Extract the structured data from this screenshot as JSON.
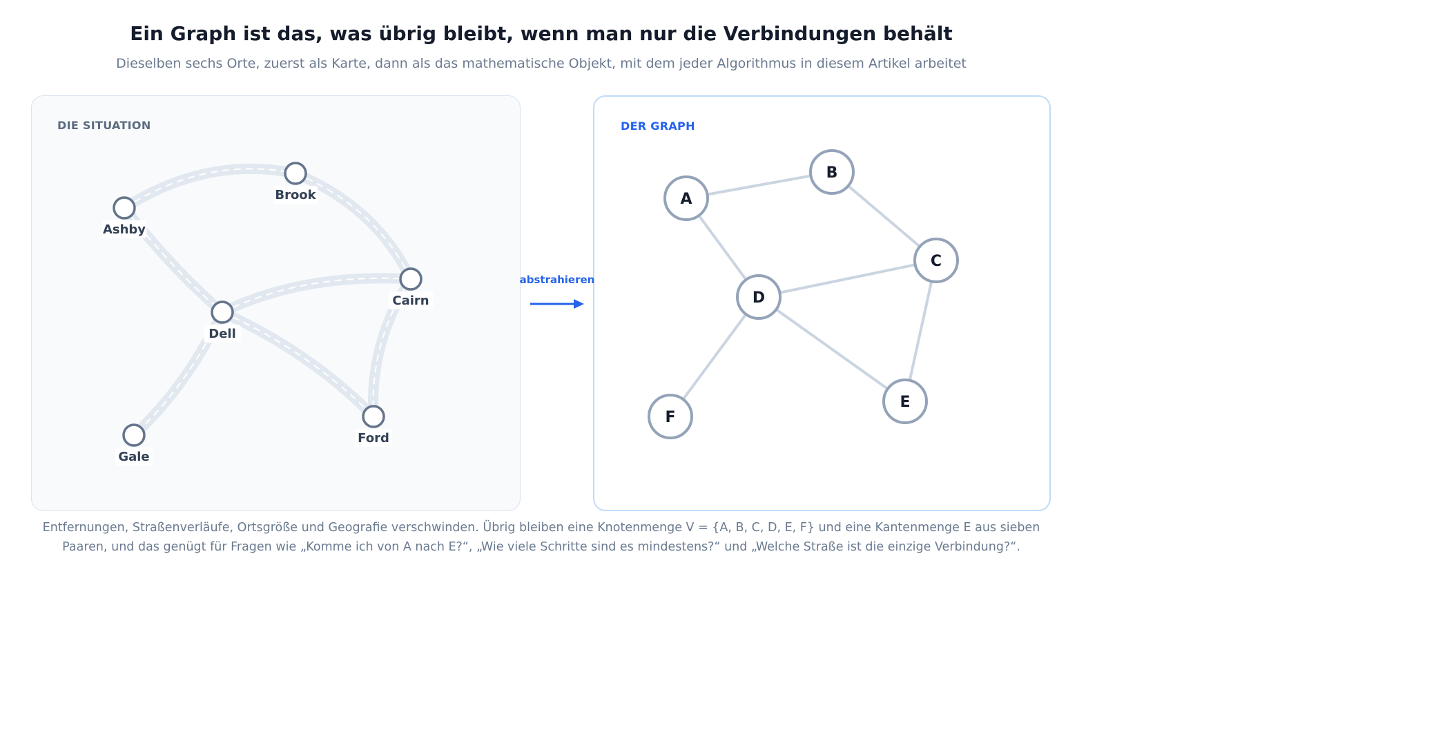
{
  "title": "Ein Graph ist das, was übrig bleibt, wenn man nur die Verbindungen behält",
  "subtitle": "Dieselben sechs Orte, zuerst als Karte, dann als das mathematische Objekt, mit dem jeder Algorithmus in diesem Artikel arbeitet",
  "situation": {
    "label": "DIE SITUATION",
    "places": [
      {
        "id": "ashby",
        "name": "Ashby"
      },
      {
        "id": "brook",
        "name": "Brook"
      },
      {
        "id": "cairn",
        "name": "Cairn"
      },
      {
        "id": "dell",
        "name": "Dell"
      },
      {
        "id": "ford",
        "name": "Ford"
      },
      {
        "id": "gale",
        "name": "Gale"
      }
    ],
    "roads": [
      [
        "ashby",
        "brook"
      ],
      [
        "brook",
        "cairn"
      ],
      [
        "ashby",
        "dell"
      ],
      [
        "dell",
        "cairn"
      ],
      [
        "dell",
        "ford"
      ],
      [
        "cairn",
        "ford"
      ],
      [
        "dell",
        "gale"
      ]
    ]
  },
  "arrow": {
    "label": "abstrahieren"
  },
  "graph": {
    "label": "DER GRAPH",
    "nodes": [
      "A",
      "B",
      "C",
      "D",
      "E",
      "F"
    ],
    "edges": [
      [
        "A",
        "B"
      ],
      [
        "B",
        "C"
      ],
      [
        "A",
        "D"
      ],
      [
        "D",
        "C"
      ],
      [
        "D",
        "E"
      ],
      [
        "C",
        "E"
      ],
      [
        "D",
        "F"
      ]
    ]
  },
  "caption": {
    "line1": "Entfernungen, Straßenverläufe, Ortsgröße und Geografie verschwinden. Übrig bleiben eine Knotenmenge V = {A, B, C, D, E, F} und eine Kantenmenge E aus sieben",
    "line2": "Paaren, und das genügt für Fragen wie „Komme ich von A nach E?“, „Wie viele Schritte sind es mindestens?“ und „Welche Straße ist die einzige Verbindung?“."
  },
  "colors": {
    "road": "#e2e8f0",
    "road_dash": "#ffffff",
    "place_stroke": "#64748b",
    "edge": "#cbd5e1",
    "node_stroke": "#94a3b8",
    "accent": "#2563eb"
  }
}
